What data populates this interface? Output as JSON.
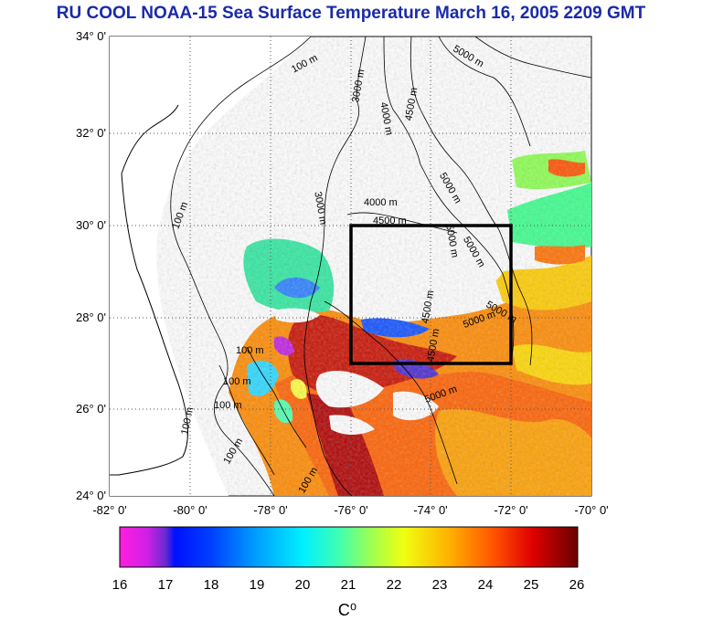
{
  "title": "RU COOL  NOAA-15 Sea Surface Temperature March 16, 2005 2209 GMT",
  "lat_labels": [
    "34° 0'",
    "32° 0'",
    "30° 0'",
    "28° 0'",
    "26° 0'",
    "24° 0'"
  ],
  "lon_labels": [
    "-82° 0'",
    "-80° 0'",
    "-78° 0'",
    "-76° 0'",
    "-74° 0'",
    "-72° 0'",
    "-70° 0'"
  ],
  "isobath_labels": {
    "l100a": "100 m",
    "l100b": "100 m",
    "l100c": "100 m",
    "l100d": "100 m",
    "l100e": "100 m",
    "l100f": "100 m",
    "l100g": "100 m",
    "l100h": "100 m",
    "l3000a": "3000 m",
    "l3000b": "3000 m",
    "l4000a": "4000 m",
    "l4000b": "4000 m",
    "l4500a": "4500 m",
    "l4500b": "4500 m",
    "l4500c": "4500 m",
    "l4500d": "4500 m",
    "l5000a": "5000 m",
    "l5000b": "5000 m",
    "l5000c": "5000 m",
    "l5000d": "5000 m",
    "l5000e": "5000 m",
    "l5000f": "5000 m",
    "l5000g": "5000 m"
  },
  "colorbar": {
    "ticks": [
      "16",
      "17",
      "18",
      "19",
      "20",
      "21",
      "22",
      "23",
      "24",
      "25",
      "26"
    ],
    "unit": "C⁰",
    "colors": [
      "#ff1ee0",
      "#6a2ad0",
      "#0010ff",
      "#0070ff",
      "#00d8ff",
      "#6cff8c",
      "#ecff10",
      "#ffb000",
      "#ff5000",
      "#e00000",
      "#7a0000"
    ]
  },
  "study_box": {
    "lon_min": -76,
    "lon_max": -72,
    "lat_min": 27,
    "lat_max": 30
  }
}
